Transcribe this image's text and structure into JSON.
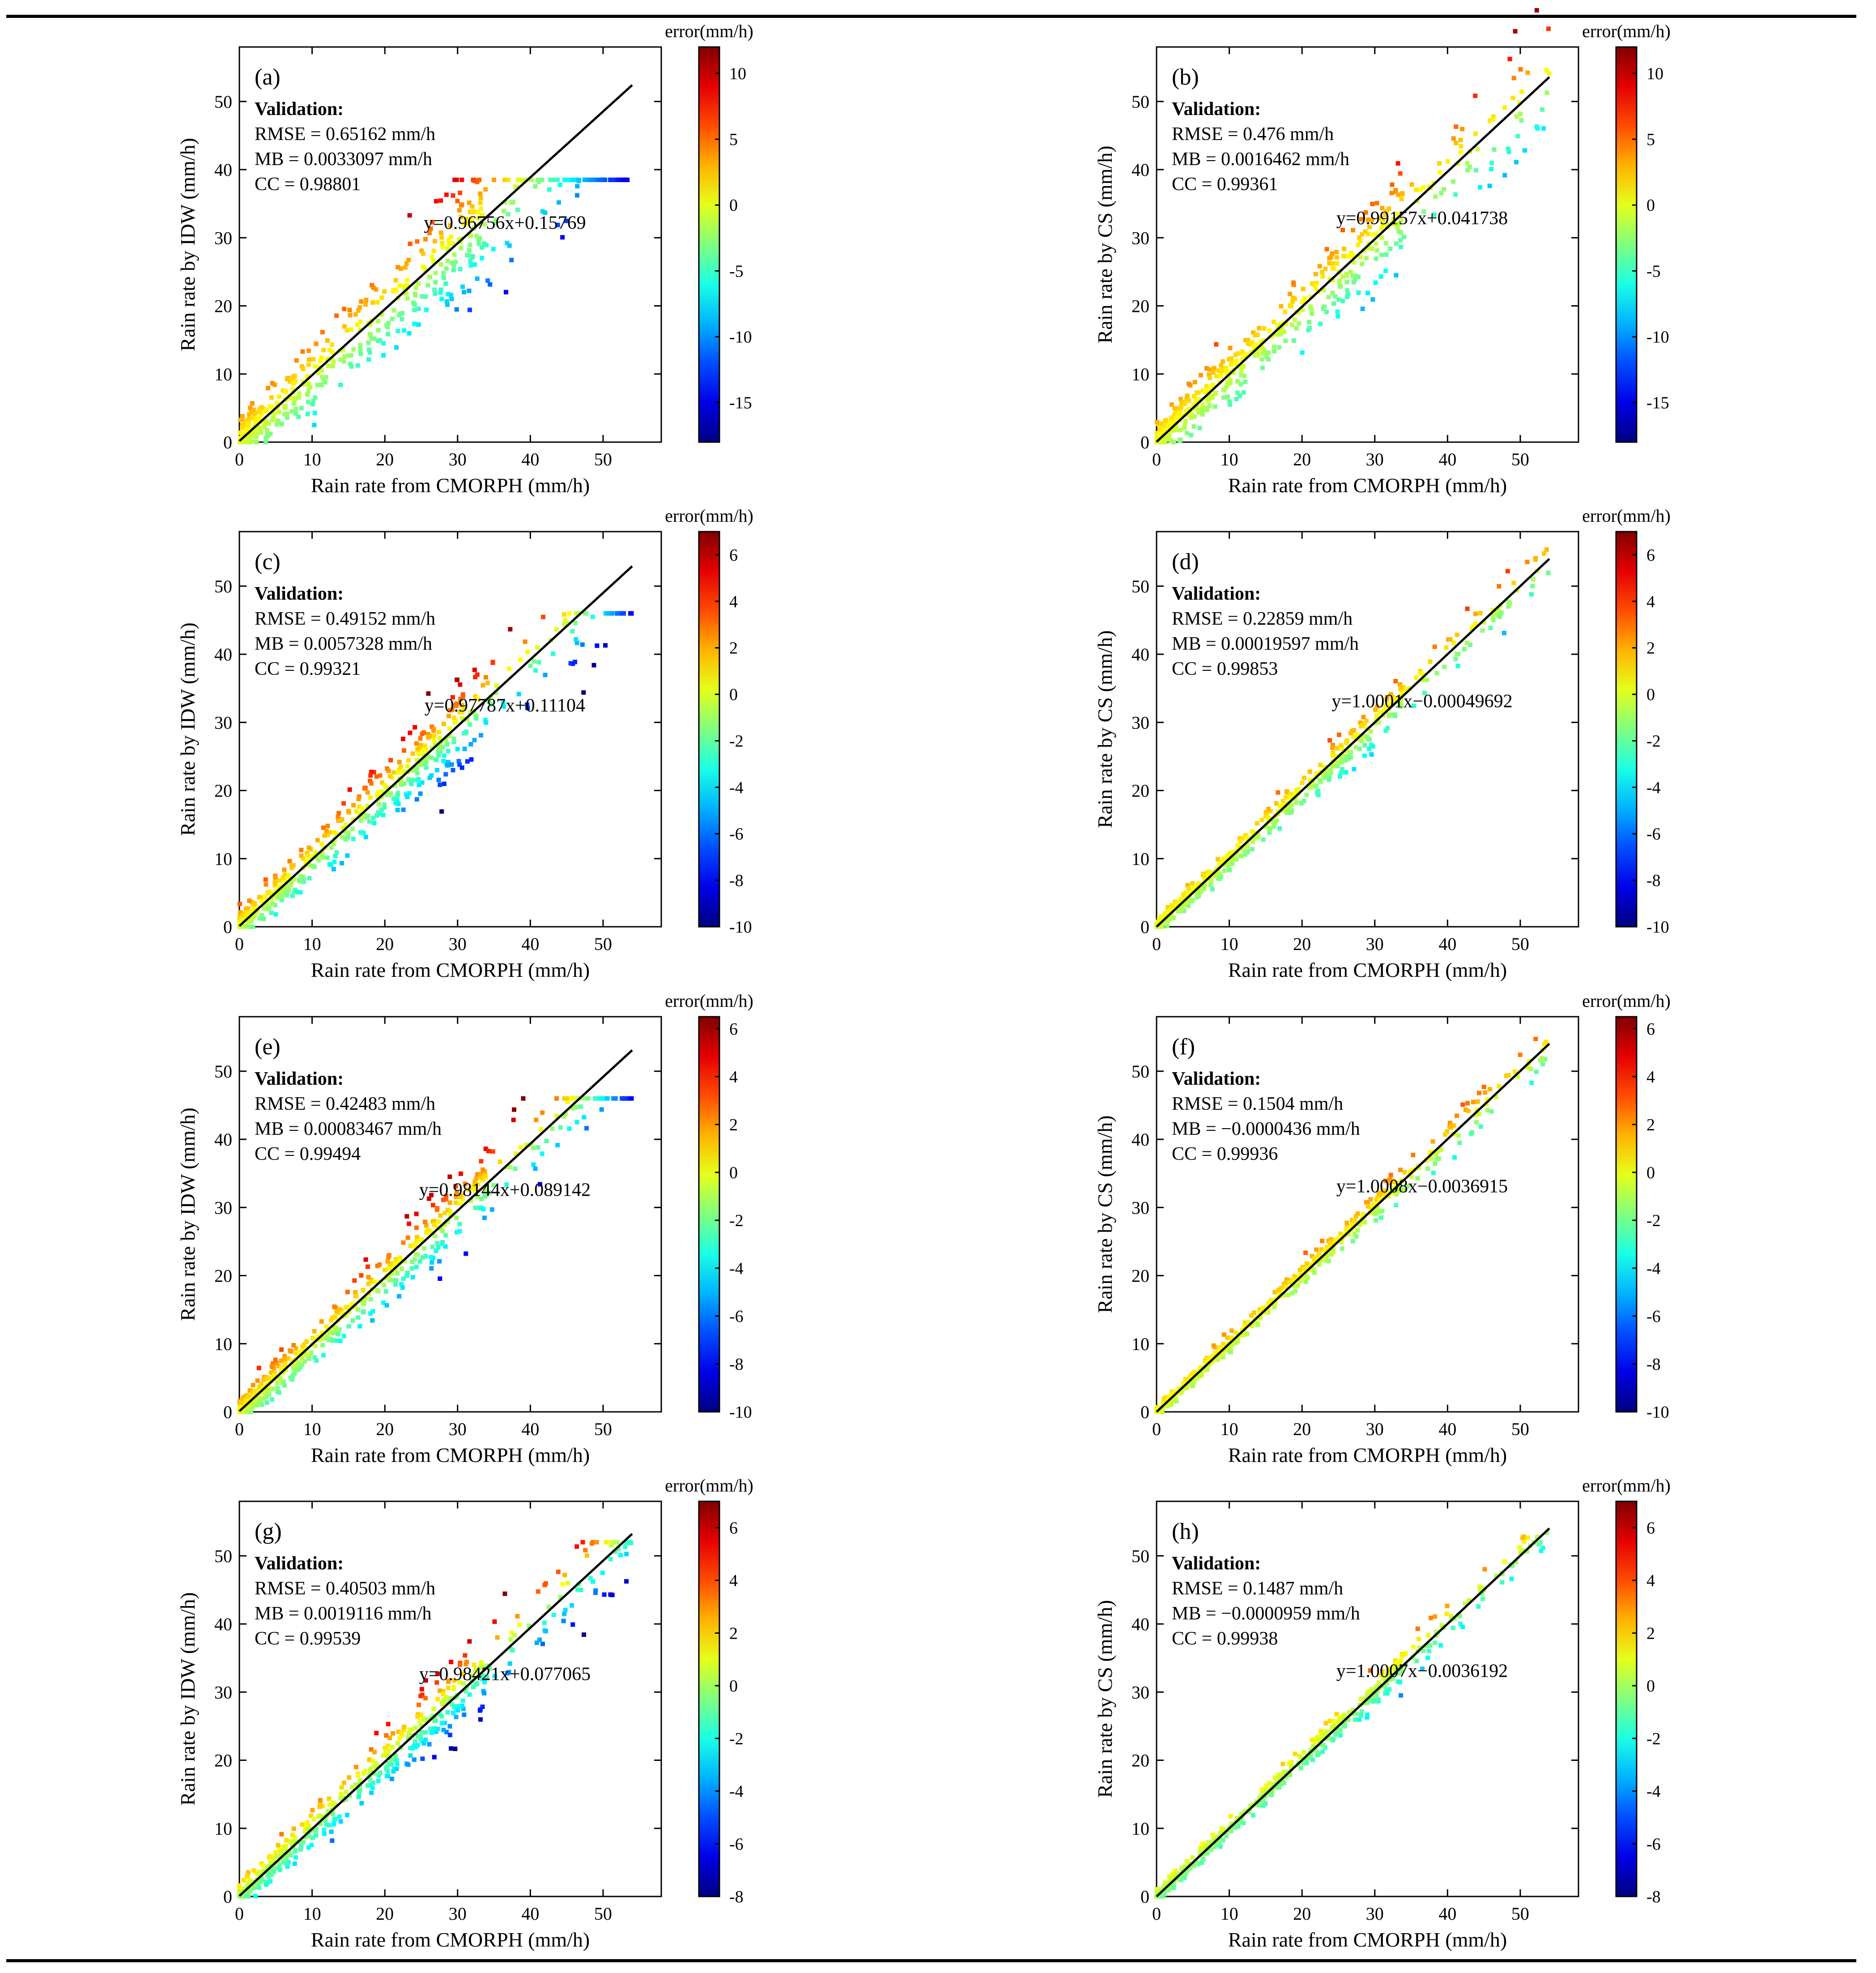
{
  "figure": {
    "x_label": "Rain rate from CMORPH (mm/h)",
    "colorbar_title": "error(mm/h)",
    "validation_heading": "Validation:"
  },
  "chart_data": [
    {
      "type": "scatter",
      "panel": "(a)",
      "method": "IDW",
      "ylabel": "Rain rate by IDW (mm/h)",
      "xlabel": "Rain rate from CMORPH (mm/h)",
      "xlim": [
        0,
        58
      ],
      "ylim": [
        0,
        58
      ],
      "xticks": [
        0,
        10,
        20,
        30,
        40,
        50
      ],
      "yticks": [
        0,
        10,
        20,
        30,
        40,
        50
      ],
      "stats": {
        "rmse": "RMSE = 0.65162 mm/h",
        "mb": "MB = 0.0033097 mm/h",
        "cc": "CC = 0.98801"
      },
      "fit": {
        "slope": 0.96756,
        "intercept": 0.15769,
        "label": "y=0.96756x+0.15769"
      },
      "cap": 38.5,
      "spread": 2.5,
      "colorbar": {
        "title": "error(mm/h)",
        "min": -18,
        "max": 12,
        "ticks": [
          -15,
          -10,
          -5,
          0,
          5,
          10
        ]
      }
    },
    {
      "type": "scatter",
      "panel": "(b)",
      "method": "CS",
      "ylabel": "Rain rate by CS (mm/h)",
      "xlabel": "Rain rate from CMORPH (mm/h)",
      "xlim": [
        0,
        58
      ],
      "ylim": [
        0,
        58
      ],
      "xticks": [
        0,
        10,
        20,
        30,
        40,
        50
      ],
      "yticks": [
        0,
        10,
        20,
        30,
        40,
        50
      ],
      "stats": {
        "rmse": "RMSE = 0.476 mm/h",
        "mb": "MB = 0.0016462 mm/h",
        "cc": "CC = 0.99361"
      },
      "fit": {
        "slope": 0.99157,
        "intercept": 0.041738,
        "label": "y=0.99157x+0.041738"
      },
      "cap": null,
      "spread": 2.0,
      "colorbar": {
        "title": "error(mm/h)",
        "min": -18,
        "max": 12,
        "ticks": [
          -15,
          -10,
          -5,
          0,
          5,
          10
        ]
      }
    },
    {
      "type": "scatter",
      "panel": "(c)",
      "method": "IDW",
      "ylabel": "Rain rate by IDW (mm/h)",
      "xlabel": "Rain rate from CMORPH (mm/h)",
      "xlim": [
        0,
        58
      ],
      "ylim": [
        0,
        58
      ],
      "xticks": [
        0,
        10,
        20,
        30,
        40,
        50
      ],
      "yticks": [
        0,
        10,
        20,
        30,
        40,
        50
      ],
      "stats": {
        "rmse": "RMSE = 0.49152 mm/h",
        "mb": "MB = 0.0057328 mm/h",
        "cc": "CC = 0.99321"
      },
      "fit": {
        "slope": 0.97787,
        "intercept": 0.11104,
        "label": "y=0.97787x+0.11104"
      },
      "cap": 46,
      "spread": 1.8,
      "colorbar": {
        "title": "error(mm/h)",
        "min": -10,
        "max": 7,
        "ticks": [
          -10,
          -8,
          -6,
          -4,
          -2,
          0,
          2,
          4,
          6
        ]
      }
    },
    {
      "type": "scatter",
      "panel": "(d)",
      "method": "CS",
      "ylabel": "Rain rate by CS (mm/h)",
      "xlabel": "Rain rate from CMORPH (mm/h)",
      "xlim": [
        0,
        58
      ],
      "ylim": [
        0,
        58
      ],
      "xticks": [
        0,
        10,
        20,
        30,
        40,
        50
      ],
      "yticks": [
        0,
        10,
        20,
        30,
        40,
        50
      ],
      "stats": {
        "rmse": "RMSE = 0.22859 mm/h",
        "mb": "MB = 0.00019597 mm/h",
        "cc": "CC = 0.99853"
      },
      "fit": {
        "slope": 1.0001,
        "intercept": -0.00049692,
        "label": "y=1.0001x−0.00049692"
      },
      "cap": null,
      "spread": 0.9,
      "colorbar": {
        "title": "error(mm/h)",
        "min": -10,
        "max": 7,
        "ticks": [
          -10,
          -8,
          -6,
          -4,
          -2,
          0,
          2,
          4,
          6
        ]
      }
    },
    {
      "type": "scatter",
      "panel": "(e)",
      "method": "IDW",
      "ylabel": "Rain rate by IDW (mm/h)",
      "xlabel": "Rain rate from CMORPH (mm/h)",
      "xlim": [
        0,
        58
      ],
      "ylim": [
        0,
        58
      ],
      "xticks": [
        0,
        10,
        20,
        30,
        40,
        50
      ],
      "yticks": [
        0,
        10,
        20,
        30,
        40,
        50
      ],
      "stats": {
        "rmse": "RMSE = 0.42483 mm/h",
        "mb": "MB = 0.00083467 mm/h",
        "cc": "CC = 0.99494"
      },
      "fit": {
        "slope": 0.98144,
        "intercept": 0.089142,
        "label": "y=0.98144x+0.089142"
      },
      "cap": 46,
      "spread": 1.6,
      "colorbar": {
        "title": "error(mm/h)",
        "min": -10,
        "max": 6.5,
        "ticks": [
          -10,
          -8,
          -6,
          -4,
          -2,
          0,
          2,
          4,
          6
        ]
      }
    },
    {
      "type": "scatter",
      "panel": "(f)",
      "method": "CS",
      "ylabel": "Rain rate by CS (mm/h)",
      "xlabel": "Rain rate from CMORPH (mm/h)",
      "xlim": [
        0,
        58
      ],
      "ylim": [
        0,
        58
      ],
      "xticks": [
        0,
        10,
        20,
        30,
        40,
        50
      ],
      "yticks": [
        0,
        10,
        20,
        30,
        40,
        50
      ],
      "stats": {
        "rmse": "RMSE = 0.1504 mm/h",
        "mb": "MB = −0.0000436 mm/h",
        "cc": "CC = 0.99936"
      },
      "fit": {
        "slope": 1.0008,
        "intercept": -0.0036915,
        "label": "y=1.0008x−0.0036915"
      },
      "cap": null,
      "spread": 0.6,
      "colorbar": {
        "title": "error(mm/h)",
        "min": -10,
        "max": 6.5,
        "ticks": [
          -10,
          -8,
          -6,
          -4,
          -2,
          0,
          2,
          4,
          6
        ]
      }
    },
    {
      "type": "scatter",
      "panel": "(g)",
      "method": "IDW",
      "ylabel": "Rain rate by IDW (mm/h)",
      "xlabel": "Rain rate from CMORPH (mm/h)",
      "xlim": [
        0,
        58
      ],
      "ylim": [
        0,
        58
      ],
      "xticks": [
        0,
        10,
        20,
        30,
        40,
        50
      ],
      "yticks": [
        0,
        10,
        20,
        30,
        40,
        50
      ],
      "stats": {
        "rmse": "RMSE = 0.40503 mm/h",
        "mb": "MB = 0.0019116 mm/h",
        "cc": "CC = 0.99539"
      },
      "fit": {
        "slope": 0.98421,
        "intercept": 0.077065,
        "label": "y=0.98421x+0.077065"
      },
      "cap": 52,
      "spread": 1.5,
      "colorbar": {
        "title": "error(mm/h)",
        "min": -8,
        "max": 7,
        "ticks": [
          -8,
          -6,
          -4,
          -2,
          0,
          2,
          4,
          6
        ]
      }
    },
    {
      "type": "scatter",
      "panel": "(h)",
      "method": "CS",
      "ylabel": "Rain rate by CS (mm/h)",
      "xlabel": "Rain rate from CMORPH (mm/h)",
      "xlim": [
        0,
        58
      ],
      "ylim": [
        0,
        58
      ],
      "xticks": [
        0,
        10,
        20,
        30,
        40,
        50
      ],
      "yticks": [
        0,
        10,
        20,
        30,
        40,
        50
      ],
      "stats": {
        "rmse": "RMSE = 0.1487 mm/h",
        "mb": "MB = −0.0000959 mm/h",
        "cc": "CC = 0.99938"
      },
      "fit": {
        "slope": 1.0007,
        "intercept": -0.0036192,
        "label": "y=1.0007x−0.0036192"
      },
      "cap": null,
      "spread": 0.6,
      "colorbar": {
        "title": "error(mm/h)",
        "min": -8,
        "max": 7,
        "ticks": [
          -8,
          -6,
          -4,
          -2,
          0,
          2,
          4,
          6
        ]
      }
    }
  ]
}
